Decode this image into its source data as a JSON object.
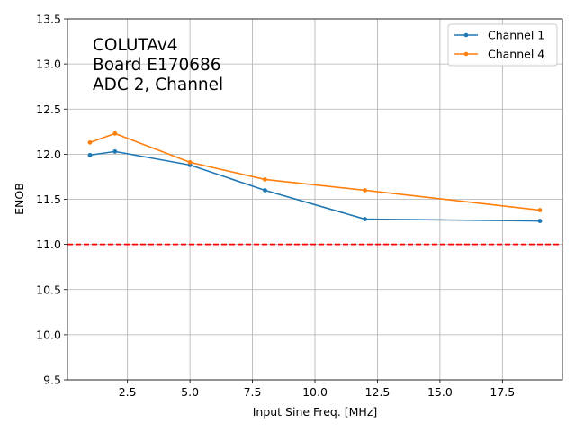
{
  "chart_data": {
    "type": "line",
    "title": "",
    "xlabel": "Input Sine Freq. [MHz]",
    "ylabel": "ENOB",
    "xlim": [
      0.1,
      19.9
    ],
    "ylim": [
      9.5,
      13.5
    ],
    "xticks": [
      2.5,
      5.0,
      7.5,
      10.0,
      12.5,
      15.0,
      17.5
    ],
    "xtick_labels": [
      "2.5",
      "5.0",
      "7.5",
      "10.0",
      "12.5",
      "15.0",
      "17.5"
    ],
    "yticks": [
      9.5,
      10.0,
      10.5,
      11.0,
      11.5,
      12.0,
      12.5,
      13.0,
      13.5
    ],
    "ytick_labels": [
      "9.5",
      "10.0",
      "10.5",
      "11.0",
      "11.5",
      "12.0",
      "12.5",
      "13.0",
      "13.5"
    ],
    "grid": true,
    "legend_position": "top-right",
    "annotation_lines": [
      "COLUTAv4",
      "Board E170686",
      "ADC 2, Channel"
    ],
    "reference_line": {
      "y": 11.0,
      "color": "#ff0000",
      "style": "dashed"
    },
    "series": [
      {
        "name": "Channel 1",
        "color": "#1f77b4",
        "x": [
          1,
          2,
          5,
          8,
          12,
          19
        ],
        "y": [
          11.99,
          12.03,
          11.88,
          11.6,
          11.28,
          11.26
        ]
      },
      {
        "name": "Channel 4",
        "color": "#ff7f0e",
        "x": [
          1,
          2,
          5,
          8,
          12,
          19
        ],
        "y": [
          12.13,
          12.23,
          11.91,
          11.72,
          11.6,
          11.38
        ]
      }
    ]
  }
}
